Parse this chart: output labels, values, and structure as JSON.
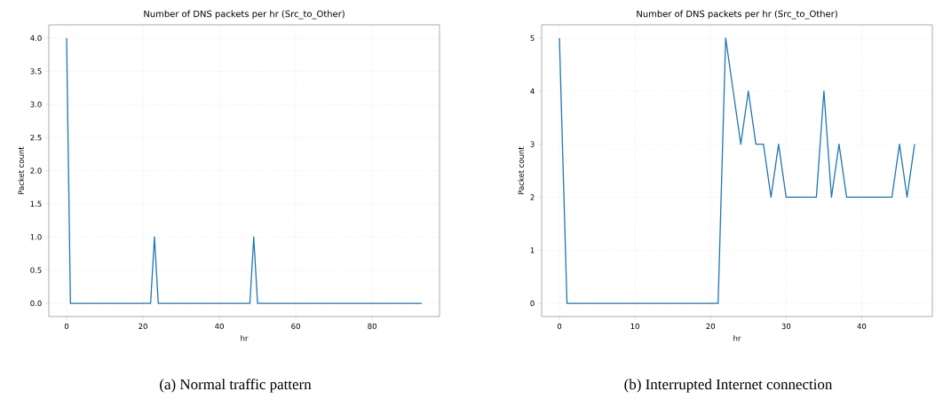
{
  "chart_data": [
    {
      "type": "line",
      "title": "Number of DNS packets per hr (Src_to_Other)",
      "xlabel": "hr",
      "ylabel": "Packet count",
      "x": [
        0,
        1,
        2,
        3,
        4,
        5,
        6,
        7,
        8,
        9,
        10,
        11,
        12,
        13,
        14,
        15,
        16,
        17,
        18,
        19,
        20,
        21,
        22,
        23,
        24,
        25,
        26,
        27,
        28,
        29,
        30,
        31,
        32,
        33,
        34,
        35,
        36,
        37,
        38,
        39,
        40,
        41,
        42,
        43,
        44,
        45,
        46,
        47,
        48,
        49,
        50,
        51,
        52,
        53,
        54,
        55,
        56,
        57,
        58,
        59,
        60,
        61,
        62,
        63,
        64,
        65,
        66,
        67,
        68,
        69,
        70,
        71,
        72,
        73,
        74,
        75,
        76,
        77,
        78,
        79,
        80,
        81,
        82,
        83,
        84,
        85,
        86,
        87,
        88,
        89,
        90,
        91,
        92,
        93
      ],
      "series": [
        {
          "color": "#1f77b4",
          "values": [
            4,
            0,
            0,
            0,
            0,
            0,
            0,
            0,
            0,
            0,
            0,
            0,
            0,
            0,
            0,
            0,
            0,
            0,
            0,
            0,
            0,
            0,
            0,
            1,
            0,
            0,
            0,
            0,
            0,
            0,
            0,
            0,
            0,
            0,
            0,
            0,
            0,
            0,
            0,
            0,
            0,
            0,
            0,
            0,
            0,
            0,
            0,
            0,
            0,
            1,
            0,
            0,
            0,
            0,
            0,
            0,
            0,
            0,
            0,
            0,
            0,
            0,
            0,
            0,
            0,
            0,
            0,
            0,
            0,
            0,
            0,
            0,
            0,
            0,
            0,
            0,
            0,
            0,
            0,
            0,
            0,
            0,
            0,
            0,
            0,
            0,
            0,
            0,
            0,
            0,
            0,
            0,
            0,
            0
          ]
        }
      ],
      "xlim": [
        -4.65,
        97.65
      ],
      "ylim": [
        -0.2,
        4.2
      ],
      "xticks": [
        0,
        20,
        40,
        60,
        80
      ],
      "yticks": [
        {
          "value": 0,
          "label": "0.0"
        },
        {
          "value": 0.5,
          "label": "0.5"
        },
        {
          "value": 1,
          "label": "1.0"
        },
        {
          "value": 1.5,
          "label": "1.5"
        },
        {
          "value": 2,
          "label": "2.0"
        },
        {
          "value": 2.5,
          "label": "2.5"
        },
        {
          "value": 3,
          "label": "3.0"
        },
        {
          "value": 3.5,
          "label": "3.5"
        },
        {
          "value": 4,
          "label": "4.0"
        }
      ],
      "grid": true,
      "annotations": [
        "(a) Normal traffic pattern"
      ]
    },
    {
      "type": "line",
      "title": "Number of DNS packets per hr (Src_to_Other)",
      "xlabel": "hr",
      "ylabel": "Packet count",
      "x": [
        0,
        1,
        2,
        3,
        4,
        5,
        6,
        7,
        8,
        9,
        10,
        11,
        12,
        13,
        14,
        15,
        16,
        17,
        18,
        19,
        20,
        21,
        22,
        23,
        24,
        25,
        26,
        27,
        28,
        29,
        30,
        31,
        32,
        33,
        34,
        35,
        36,
        37,
        38,
        39,
        40,
        41,
        42,
        43,
        44,
        45,
        46,
        47
      ],
      "series": [
        {
          "color": "#1f77b4",
          "values": [
            5,
            0,
            0,
            0,
            0,
            0,
            0,
            0,
            0,
            0,
            0,
            0,
            0,
            0,
            0,
            0,
            0,
            0,
            0,
            0,
            0,
            0,
            5,
            4,
            3,
            4,
            3,
            3,
            2,
            3,
            2,
            2,
            2,
            2,
            2,
            4,
            2,
            3,
            2,
            2,
            2,
            2,
            2,
            2,
            2,
            3,
            2,
            3
          ]
        }
      ],
      "xlim": [
        -2.35,
        49.35
      ],
      "ylim": [
        -0.25,
        5.25
      ],
      "xticks": [
        0,
        10,
        20,
        30,
        40
      ],
      "yticks": [
        0,
        1,
        2,
        3,
        4,
        5
      ],
      "grid": true,
      "annotations": [
        "(b) Interrupted Internet connection"
      ]
    }
  ]
}
